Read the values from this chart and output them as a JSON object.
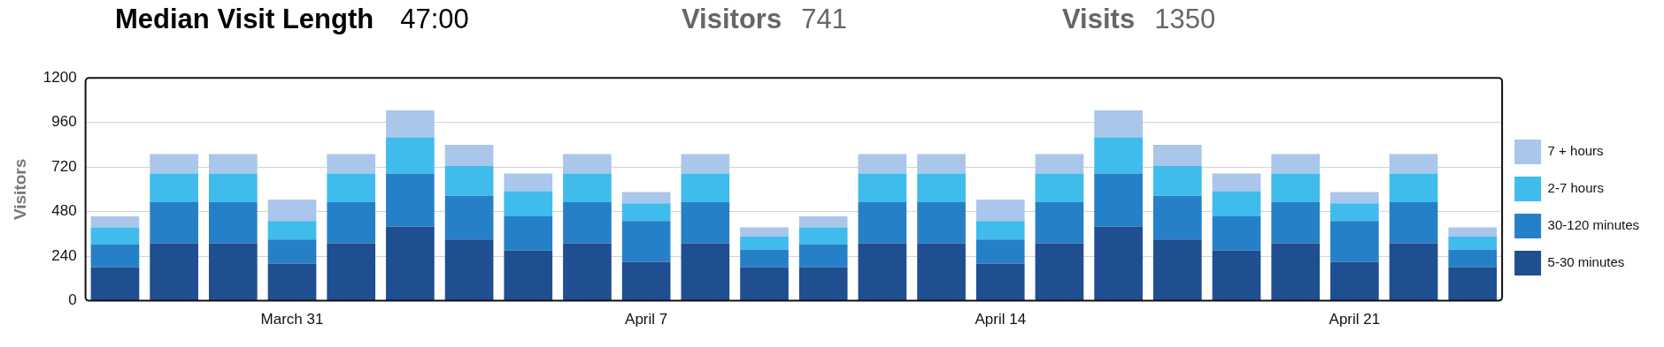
{
  "chart_data": {
    "type": "bar",
    "stacked": true,
    "ylabel": "Visitors",
    "annotations": [
      "Median Visit Length",
      "47:00",
      "Visitors",
      "741",
      "Visits",
      "1350"
    ],
    "categories": [
      null,
      null,
      null,
      "March 31",
      null,
      null,
      null,
      null,
      null,
      "April 7",
      null,
      null,
      null,
      null,
      null,
      "April 14",
      null,
      null,
      null,
      null,
      null,
      "April 21",
      null,
      null
    ],
    "series": [
      {
        "name": "5-30 minutes",
        "color": "#1f4e91",
        "values": [
          180,
          310,
          310,
          200,
          310,
          400,
          330,
          270,
          310,
          210,
          310,
          180,
          180,
          310,
          310,
          200,
          310,
          400,
          330,
          270,
          310,
          210,
          310,
          180
        ]
      },
      {
        "name": "30-120 minutes",
        "color": "#2680c8",
        "values": [
          125,
          220,
          220,
          130,
          220,
          285,
          235,
          185,
          220,
          220,
          220,
          95,
          125,
          220,
          220,
          130,
          220,
          285,
          235,
          185,
          220,
          220,
          220,
          95
        ]
      },
      {
        "name": "2-7 hours",
        "color": "#3fbcec",
        "values": [
          90,
          155,
          155,
          100,
          155,
          195,
          160,
          135,
          155,
          95,
          155,
          70,
          90,
          155,
          155,
          100,
          155,
          195,
          160,
          135,
          155,
          95,
          155,
          70
        ]
      },
      {
        "name": "7 + hours",
        "color": "#aac6ea",
        "values": [
          60,
          105,
          105,
          115,
          105,
          145,
          115,
          95,
          105,
          60,
          105,
          50,
          60,
          105,
          105,
          115,
          105,
          145,
          115,
          95,
          105,
          60,
          105,
          50
        ]
      }
    ],
    "ylim": [
      0,
      1200
    ],
    "yticks": [
      0,
      240,
      480,
      720,
      960,
      1200
    ],
    "grid": "y",
    "legend": "right"
  }
}
